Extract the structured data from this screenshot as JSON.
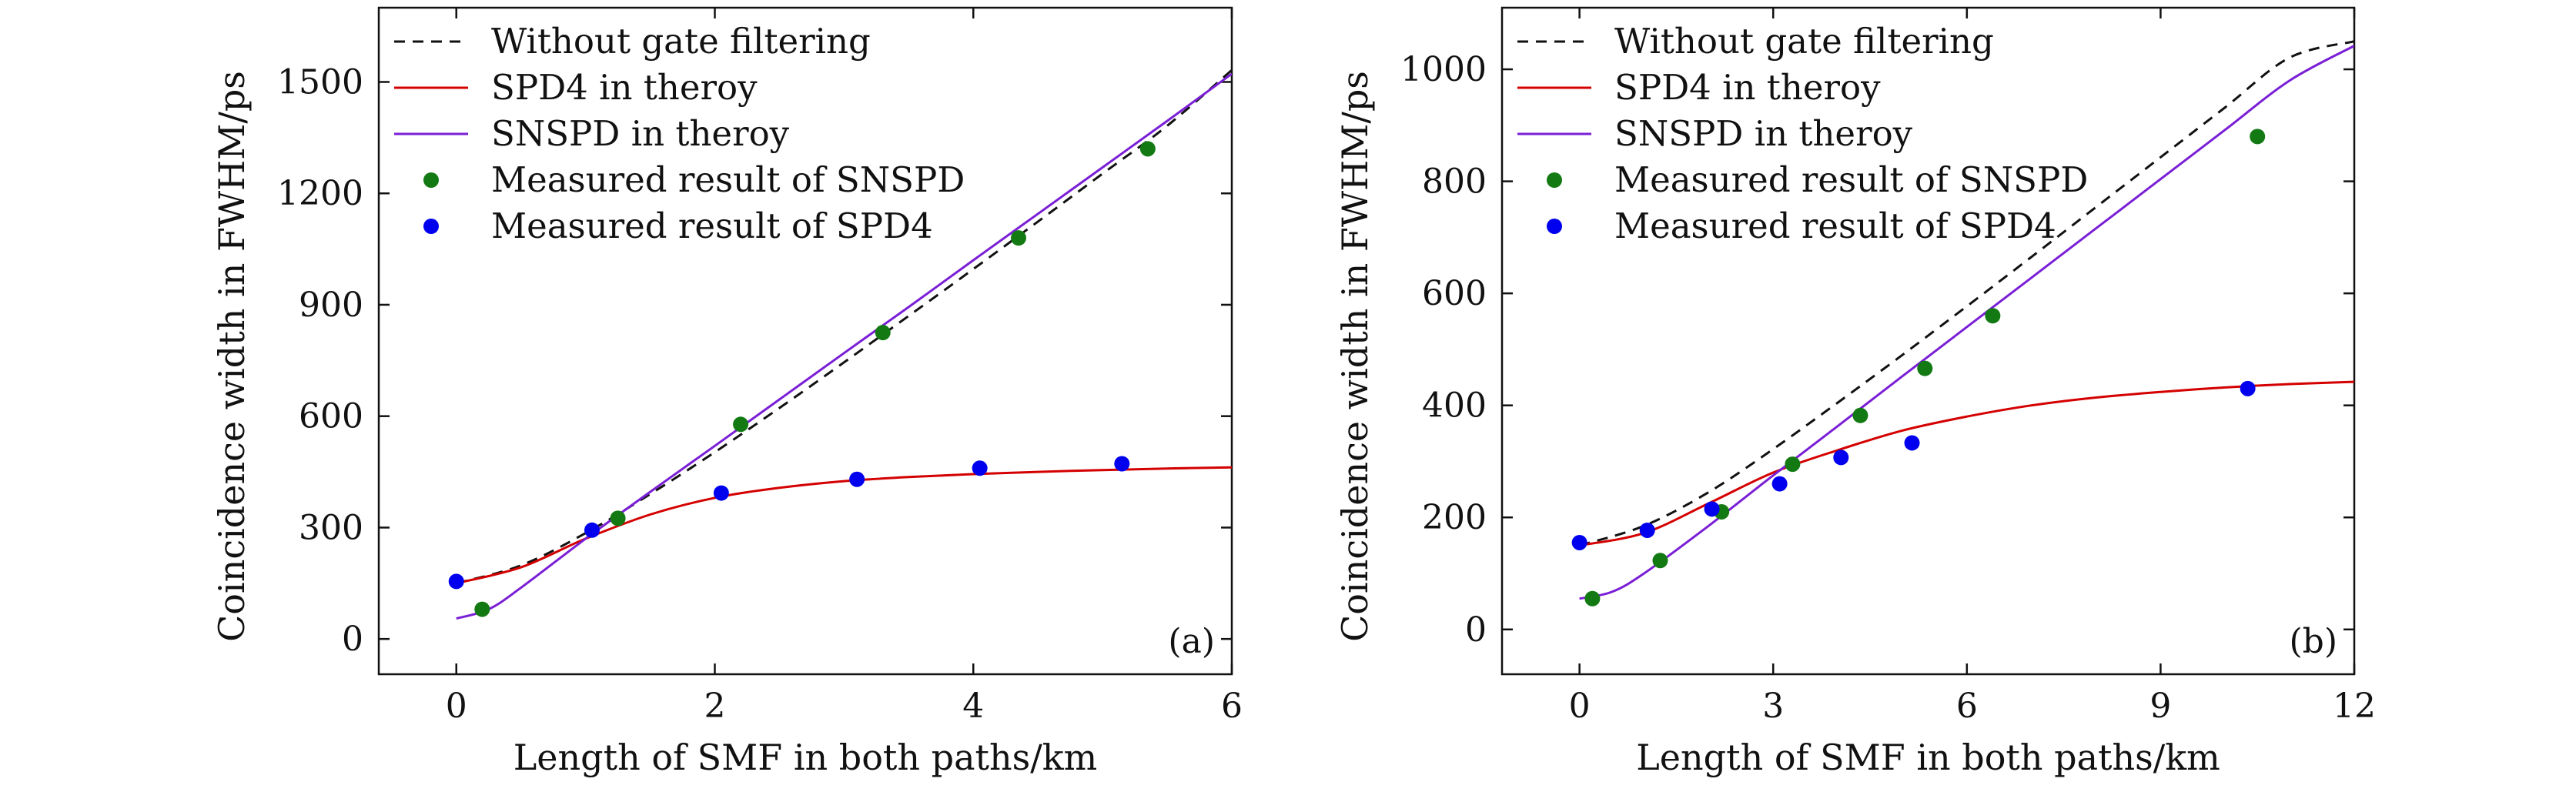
{
  "colors": {
    "without_gate": "#111111",
    "spd4_theory": "#d40000",
    "snspd_theory": "#7a1fd6",
    "snspd_measured": "#137a13",
    "spd4_measured": "#0000ee"
  },
  "chart_data": [
    {
      "type": "line",
      "panel_label": "(a)",
      "xlabel": "Length of SMF in both paths/km",
      "ylabel": "Coincidence width in FWHM/ps",
      "xlim": [
        -0.6,
        6
      ],
      "ylim": [
        -95,
        1700
      ],
      "xticks": [
        0,
        2,
        4,
        6
      ],
      "yticks": [
        0,
        300,
        600,
        900,
        1200,
        1500
      ],
      "xtick_labels": [
        "0",
        "2",
        "4",
        "6"
      ],
      "ytick_labels": [
        "0",
        "300",
        "600",
        "900",
        "1200",
        "1500"
      ],
      "grid": false,
      "legend_position": "top-left",
      "series": [
        {
          "name": "Without gate filtering",
          "kind": "line",
          "style": "dashed",
          "color_key": "without_gate",
          "x": [
            0,
            0.5,
            1,
            1.5,
            2,
            2.5,
            3,
            3.5,
            4,
            4.5,
            5,
            5.5,
            6
          ],
          "y": [
            150,
            198,
            285,
            390,
            503,
            622,
            745,
            870,
            996,
            1124,
            1253,
            1382,
            1532
          ]
        },
        {
          "name": "SPD4 in theroy",
          "kind": "line",
          "style": "solid",
          "color_key": "spd4_theory",
          "x": [
            0,
            0.5,
            1,
            1.5,
            2,
            2.5,
            3,
            3.5,
            4,
            4.5,
            5,
            5.5,
            6
          ],
          "y": [
            150,
            193,
            270,
            335,
            380,
            407,
            425,
            436,
            444,
            450,
            455,
            459,
            462
          ]
        },
        {
          "name": "SNSPD in theroy",
          "kind": "line",
          "style": "solid",
          "color_key": "snspd_theory",
          "x": [
            0,
            0.25,
            0.5,
            1,
            1.5,
            2,
            2.5,
            3,
            3.5,
            4,
            4.5,
            5,
            5.5,
            6
          ],
          "y": [
            55,
            80,
            138,
            270,
            396,
            520,
            645,
            770,
            894,
            1020,
            1145,
            1270,
            1395,
            1522
          ]
        },
        {
          "name": "Measured result of SNSPD",
          "kind": "scatter",
          "color_key": "snspd_measured",
          "x": [
            0.2,
            1.25,
            2.2,
            3.3,
            4.35,
            5.35
          ],
          "y": [
            80,
            325,
            578,
            825,
            1080,
            1320
          ]
        },
        {
          "name": "Measured result of SPD4",
          "kind": "scatter",
          "color_key": "spd4_measured",
          "x": [
            0,
            1.05,
            2.05,
            3.1,
            4.05,
            5.15
          ],
          "y": [
            155,
            293,
            393,
            430,
            460,
            472
          ]
        }
      ]
    },
    {
      "type": "line",
      "panel_label": "(b)",
      "xlabel": "Length of SMF in both paths/km",
      "ylabel": "Coincidence width in FWHM/ps",
      "xlim": [
        -1.2,
        12
      ],
      "ylim": [
        -80,
        1110
      ],
      "xticks": [
        0,
        3,
        6,
        9,
        12
      ],
      "yticks": [
        0,
        200,
        400,
        600,
        800,
        1000
      ],
      "xtick_labels": [
        "0",
        "3",
        "6",
        "9",
        "12"
      ],
      "ytick_labels": [
        "0",
        "200",
        "400",
        "600",
        "800",
        "1000"
      ],
      "grid": false,
      "legend_position": "top-left",
      "series": [
        {
          "name": "Without gate filtering",
          "kind": "line",
          "style": "dashed",
          "color_key": "without_gate",
          "x": [
            0,
            1,
            2,
            3,
            4,
            5,
            6,
            7,
            8,
            9,
            10,
            11,
            12
          ],
          "y": [
            150,
            185,
            245,
            322,
            405,
            490,
            577,
            665,
            754,
            843,
            932,
            1021,
            1050
          ]
        },
        {
          "name": "SPD4 in theroy",
          "kind": "line",
          "style": "solid",
          "color_key": "spd4_theory",
          "x": [
            0,
            1,
            2,
            3,
            4,
            5,
            6,
            7,
            8,
            9,
            10,
            11,
            12
          ],
          "y": [
            150,
            172,
            225,
            280,
            320,
            355,
            380,
            400,
            414,
            424,
            432,
            438,
            442
          ]
        },
        {
          "name": "SNSPD in theroy",
          "kind": "line",
          "style": "solid",
          "color_key": "snspd_theory",
          "x": [
            0,
            0.5,
            1,
            2,
            3,
            4,
            5,
            6,
            7,
            8,
            9,
            10,
            11,
            12
          ],
          "y": [
            55,
            67,
            100,
            185,
            275,
            363,
            452,
            540,
            628,
            716,
            804,
            892,
            980,
            1042
          ]
        },
        {
          "name": "Measured result of SNSPD",
          "kind": "scatter",
          "color_key": "snspd_measured",
          "x": [
            0.2,
            1.25,
            2.2,
            3.3,
            4.35,
            5.35,
            6.4,
            10.5
          ],
          "y": [
            55,
            123,
            210,
            295,
            382,
            466,
            560,
            880
          ]
        },
        {
          "name": "Measured result of SPD4",
          "kind": "scatter",
          "color_key": "spd4_measured",
          "x": [
            0,
            1.05,
            2.05,
            3.1,
            4.05,
            5.15,
            10.35
          ],
          "y": [
            155,
            177,
            215,
            260,
            307,
            333,
            430
          ]
        }
      ]
    }
  ]
}
